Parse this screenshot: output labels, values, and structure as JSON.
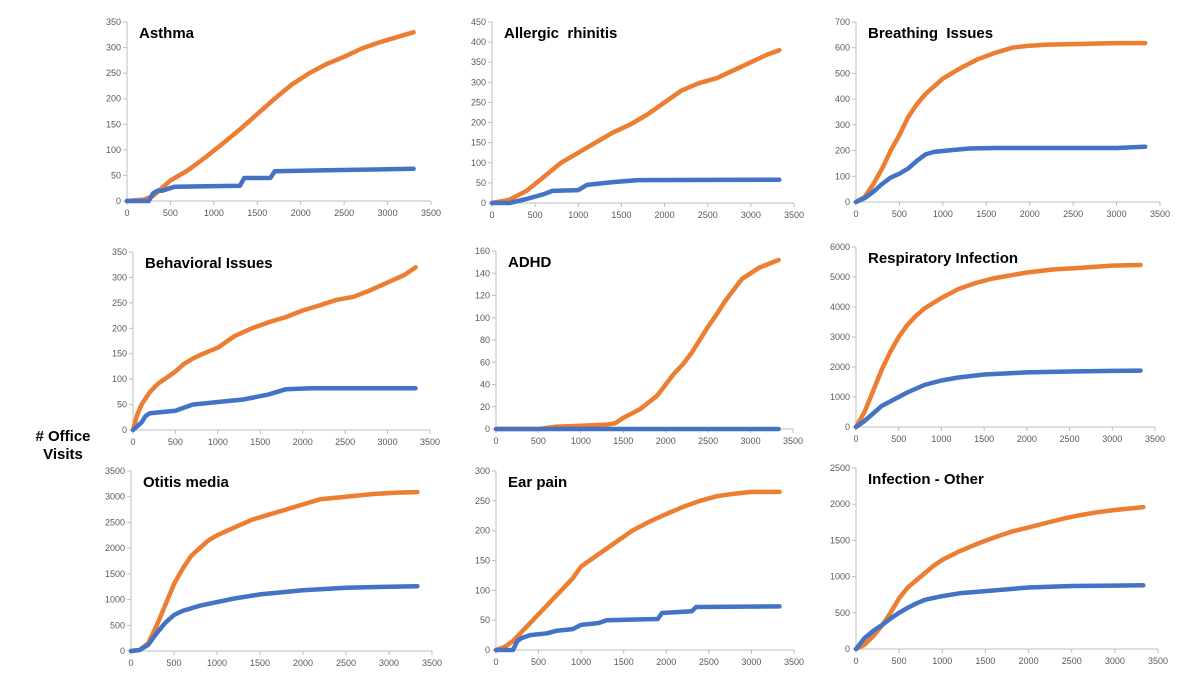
{
  "figure": {
    "ylabel_line1": "# Office",
    "ylabel_line2": "Visits"
  },
  "colors": {
    "blue": "#4472C4",
    "orange": "#ED7D31",
    "axis": "#BFBFBF",
    "tick_text": "#595959"
  },
  "chart_data": [
    {
      "type": "line",
      "title": "Asthma",
      "xlim": [
        0,
        3500
      ],
      "xticks": [
        0,
        500,
        1000,
        1500,
        2000,
        2500,
        3000,
        3500
      ],
      "ylim": [
        0,
        350
      ],
      "yticks": [
        0,
        50,
        100,
        150,
        200,
        250,
        300,
        350
      ],
      "grid": false,
      "legend": "none",
      "series": [
        {
          "color": "orange",
          "x": [
            0,
            200,
            300,
            400,
            500,
            700,
            900,
            1100,
            1300,
            1500,
            1700,
            1900,
            2100,
            2300,
            2500,
            2700,
            2900,
            3100,
            3300
          ],
          "y": [
            0,
            3,
            10,
            25,
            40,
            60,
            85,
            112,
            140,
            170,
            200,
            228,
            250,
            268,
            282,
            298,
            310,
            320,
            330
          ]
        },
        {
          "color": "blue",
          "x": [
            0,
            250,
            300,
            350,
            400,
            550,
            1300,
            1350,
            1650,
            1700,
            2300,
            3300
          ],
          "y": [
            0,
            0,
            15,
            20,
            20,
            28,
            30,
            45,
            45,
            58,
            60,
            63
          ]
        }
      ]
    },
    {
      "type": "line",
      "title": "Allergic  rhinitis",
      "xlim": [
        0,
        3500
      ],
      "xticks": [
        0,
        500,
        1000,
        1500,
        2000,
        2500,
        3000,
        3500
      ],
      "ylim": [
        0,
        450
      ],
      "yticks": [
        0,
        50,
        100,
        150,
        200,
        250,
        300,
        350,
        400,
        450
      ],
      "grid": false,
      "legend": "none",
      "series": [
        {
          "color": "orange",
          "x": [
            0,
            200,
            400,
            600,
            800,
            1000,
            1200,
            1400,
            1600,
            1800,
            2000,
            2200,
            2400,
            2600,
            2800,
            3000,
            3200,
            3330
          ],
          "y": [
            0,
            8,
            30,
            65,
            100,
            125,
            150,
            175,
            195,
            220,
            250,
            280,
            298,
            310,
            330,
            350,
            370,
            380
          ]
        },
        {
          "color": "blue",
          "x": [
            0,
            200,
            400,
            600,
            700,
            1000,
            1100,
            1400,
            1700,
            3330
          ],
          "y": [
            0,
            0,
            10,
            22,
            30,
            32,
            45,
            52,
            57,
            58
          ]
        }
      ]
    },
    {
      "type": "line",
      "title": "Breathing  Issues",
      "xlim": [
        0,
        3500
      ],
      "xticks": [
        0,
        500,
        1000,
        1500,
        2000,
        2500,
        3000,
        3500
      ],
      "ylim": [
        0,
        700
      ],
      "yticks": [
        0,
        100,
        200,
        300,
        400,
        500,
        600,
        700
      ],
      "grid": false,
      "legend": "none",
      "series": [
        {
          "color": "orange",
          "x": [
            0,
            100,
            200,
            300,
            400,
            500,
            600,
            700,
            800,
            900,
            1000,
            1200,
            1400,
            1600,
            1800,
            2000,
            2200,
            2500,
            3000,
            3330
          ],
          "y": [
            0,
            20,
            70,
            130,
            200,
            260,
            330,
            380,
            420,
            450,
            480,
            520,
            555,
            580,
            600,
            608,
            612,
            614,
            618,
            618
          ]
        },
        {
          "color": "blue",
          "x": [
            0,
            100,
            200,
            300,
            400,
            500,
            600,
            700,
            800,
            900,
            1100,
            1300,
            1600,
            2000,
            2500,
            3000,
            3330
          ],
          "y": [
            0,
            15,
            40,
            70,
            95,
            110,
            130,
            160,
            185,
            195,
            202,
            208,
            210,
            210,
            210,
            210,
            215
          ]
        }
      ]
    },
    {
      "type": "line",
      "title": "Behavioral Issues",
      "xlim": [
        0,
        3500
      ],
      "xticks": [
        0,
        500,
        1000,
        1500,
        2000,
        2500,
        3000,
        3500
      ],
      "ylim": [
        0,
        350
      ],
      "yticks": [
        0,
        50,
        100,
        150,
        200,
        250,
        300,
        350
      ],
      "grid": false,
      "legend": "none",
      "series": [
        {
          "color": "orange",
          "x": [
            0,
            50,
            100,
            200,
            300,
            400,
            500,
            600,
            700,
            800,
            1000,
            1200,
            1400,
            1600,
            1800,
            2000,
            2200,
            2400,
            2600,
            2800,
            3000,
            3200,
            3330
          ],
          "y": [
            0,
            30,
            50,
            75,
            92,
            103,
            115,
            130,
            140,
            148,
            162,
            185,
            200,
            212,
            222,
            235,
            245,
            256,
            262,
            275,
            290,
            305,
            320
          ]
        },
        {
          "color": "blue",
          "x": [
            0,
            100,
            150,
            200,
            500,
            700,
            1000,
            1300,
            1600,
            1800,
            2100,
            3330
          ],
          "y": [
            0,
            15,
            28,
            33,
            38,
            50,
            55,
            60,
            70,
            80,
            82,
            82
          ]
        }
      ]
    },
    {
      "type": "line",
      "title": "ADHD",
      "xlim": [
        0,
        3500
      ],
      "xticks": [
        0,
        500,
        1000,
        1500,
        2000,
        2500,
        3000,
        3500
      ],
      "ylim": [
        0,
        160
      ],
      "yticks": [
        0,
        20,
        40,
        60,
        80,
        100,
        120,
        140,
        160
      ],
      "grid": false,
      "legend": "none",
      "series": [
        {
          "color": "orange",
          "x": [
            0,
            500,
            700,
            1000,
            1300,
            1400,
            1500,
            1700,
            1900,
            2000,
            2100,
            2200,
            2300,
            2400,
            2500,
            2600,
            2700,
            2800,
            2900,
            3000,
            3100,
            3200,
            3330
          ],
          "y": [
            0,
            0,
            2,
            3,
            4,
            5,
            10,
            18,
            30,
            40,
            50,
            58,
            68,
            80,
            92,
            103,
            115,
            125,
            135,
            140,
            145,
            148,
            152
          ]
        },
        {
          "color": "blue",
          "x": [
            0,
            3330
          ],
          "y": [
            0,
            0
          ]
        }
      ]
    },
    {
      "type": "line",
      "title": "Respiratory Infection",
      "xlim": [
        0,
        3500
      ],
      "xticks": [
        0,
        500,
        1000,
        1500,
        2000,
        2500,
        3000,
        3500
      ],
      "ylim": [
        0,
        6000
      ],
      "yticks": [
        0,
        1000,
        2000,
        3000,
        4000,
        5000,
        6000
      ],
      "grid": false,
      "legend": "none",
      "series": [
        {
          "color": "orange",
          "x": [
            0,
            100,
            200,
            300,
            400,
            500,
            600,
            700,
            800,
            1000,
            1200,
            1400,
            1600,
            1800,
            2000,
            2300,
            2600,
            3000,
            3330
          ],
          "y": [
            0,
            500,
            1200,
            1900,
            2500,
            3000,
            3400,
            3700,
            3950,
            4300,
            4600,
            4800,
            4950,
            5050,
            5150,
            5250,
            5300,
            5380,
            5400
          ]
        },
        {
          "color": "blue",
          "x": [
            0,
            100,
            200,
            300,
            400,
            500,
            600,
            800,
            1000,
            1200,
            1500,
            2000,
            2500,
            3000,
            3330
          ],
          "y": [
            0,
            200,
            450,
            700,
            850,
            1000,
            1150,
            1400,
            1550,
            1650,
            1750,
            1820,
            1850,
            1870,
            1880
          ]
        }
      ]
    },
    {
      "type": "line",
      "title": "Otitis media",
      "xlim": [
        0,
        3500
      ],
      "xticks": [
        0,
        500,
        1000,
        1500,
        2000,
        2500,
        3000,
        3500
      ],
      "ylim": [
        0,
        3500
      ],
      "yticks": [
        0,
        500,
        1000,
        1500,
        2000,
        2500,
        3000,
        3500
      ],
      "grid": false,
      "legend": "none",
      "series": [
        {
          "color": "orange",
          "x": [
            0,
            100,
            200,
            300,
            400,
            500,
            600,
            700,
            800,
            900,
            1000,
            1200,
            1400,
            1600,
            1800,
            2000,
            2200,
            2500,
            2800,
            3100,
            3330
          ],
          "y": [
            0,
            20,
            150,
            500,
            900,
            1300,
            1600,
            1850,
            2000,
            2150,
            2250,
            2400,
            2550,
            2650,
            2750,
            2850,
            2950,
            3000,
            3050,
            3080,
            3090
          ]
        },
        {
          "color": "blue",
          "x": [
            0,
            100,
            200,
            300,
            400,
            500,
            600,
            700,
            800,
            1000,
            1200,
            1500,
            2000,
            2500,
            3000,
            3330
          ],
          "y": [
            0,
            20,
            120,
            350,
            550,
            700,
            780,
            830,
            880,
            950,
            1020,
            1100,
            1180,
            1230,
            1250,
            1260
          ]
        }
      ]
    },
    {
      "type": "line",
      "title": "Ear pain",
      "xlim": [
        0,
        3500
      ],
      "xticks": [
        0,
        500,
        1000,
        1500,
        2000,
        2500,
        3000,
        3500
      ],
      "ylim": [
        0,
        300
      ],
      "yticks": [
        0,
        50,
        100,
        150,
        200,
        250,
        300
      ],
      "grid": false,
      "legend": "none",
      "series": [
        {
          "color": "orange",
          "x": [
            0,
            100,
            200,
            300,
            400,
            500,
            600,
            700,
            800,
            900,
            1000,
            1200,
            1400,
            1600,
            1800,
            2000,
            2200,
            2400,
            2600,
            2800,
            3000,
            3330
          ],
          "y": [
            0,
            5,
            15,
            30,
            45,
            60,
            75,
            90,
            105,
            120,
            140,
            160,
            180,
            200,
            215,
            228,
            240,
            250,
            258,
            262,
            265,
            265
          ]
        },
        {
          "color": "blue",
          "x": [
            0,
            200,
            250,
            300,
            400,
            600,
            700,
            900,
            1000,
            1200,
            1300,
            1900,
            1950,
            2300,
            2350,
            3330
          ],
          "y": [
            0,
            0,
            15,
            20,
            25,
            28,
            32,
            35,
            42,
            45,
            50,
            52,
            62,
            65,
            72,
            73
          ]
        }
      ]
    },
    {
      "type": "line",
      "title": "Infection - Other",
      "xlim": [
        0,
        3500
      ],
      "xticks": [
        0,
        500,
        1000,
        1500,
        2000,
        2500,
        3000,
        3500
      ],
      "ylim": [
        0,
        2500
      ],
      "yticks": [
        0,
        500,
        1000,
        1500,
        2000,
        2500
      ],
      "grid": false,
      "legend": "none",
      "series": [
        {
          "color": "orange",
          "x": [
            0,
            100,
            200,
            300,
            400,
            500,
            600,
            700,
            800,
            900,
            1000,
            1200,
            1400,
            1600,
            1800,
            2000,
            2200,
            2400,
            2600,
            2800,
            3000,
            3330
          ],
          "y": [
            0,
            60,
            180,
            320,
            500,
            700,
            850,
            950,
            1050,
            1150,
            1230,
            1350,
            1450,
            1540,
            1620,
            1680,
            1740,
            1800,
            1850,
            1890,
            1920,
            1960
          ]
        },
        {
          "color": "blue",
          "x": [
            0,
            100,
            200,
            300,
            400,
            500,
            600,
            700,
            800,
            1000,
            1200,
            1500,
            2000,
            2500,
            3000,
            3330
          ],
          "y": [
            0,
            150,
            250,
            330,
            420,
            500,
            570,
            630,
            680,
            730,
            770,
            800,
            850,
            870,
            875,
            880
          ]
        }
      ]
    }
  ]
}
